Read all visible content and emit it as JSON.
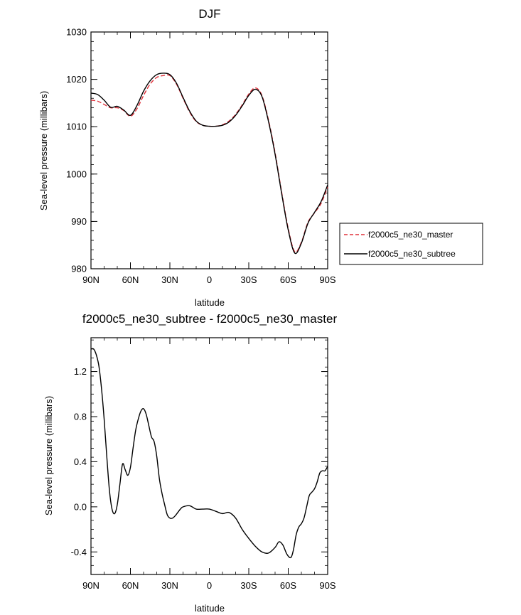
{
  "chart_data": [
    {
      "type": "line",
      "title": "DJF",
      "xlabel": "latitude",
      "ylabel": "Sea-level pressure (millibars)",
      "x_ticks": [
        {
          "lat": 90,
          "label": "90N"
        },
        {
          "lat": 60,
          "label": "60N"
        },
        {
          "lat": 30,
          "label": "30N"
        },
        {
          "lat": 0,
          "label": "0"
        },
        {
          "lat": -30,
          "label": "30S"
        },
        {
          "lat": -60,
          "label": "60S"
        },
        {
          "lat": -90,
          "label": "90S"
        }
      ],
      "y_ticks": [
        {
          "value": 980,
          "label": "980"
        },
        {
          "value": 990,
          "label": "990"
        },
        {
          "value": 1000,
          "label": "1000"
        },
        {
          "value": 1010,
          "label": "1010"
        },
        {
          "value": 1020,
          "label": "1020"
        },
        {
          "value": 1030,
          "label": "1030"
        }
      ],
      "xlim": [
        90,
        -90
      ],
      "ylim": [
        980,
        1030
      ],
      "legend": {
        "position": "right"
      },
      "series": [
        {
          "name": "f2000c5_ne30_master",
          "color": "#e0303a",
          "dash": true,
          "x": [
            90,
            85,
            80,
            75,
            70,
            65,
            60,
            55,
            50,
            45,
            40,
            35,
            30,
            25,
            20,
            15,
            10,
            5,
            0,
            -5,
            -10,
            -15,
            -20,
            -25,
            -30,
            -35,
            -40,
            -45,
            -50,
            -55,
            -60,
            -65,
            -70,
            -75,
            -80,
            -85,
            -90
          ],
          "y": [
            1015.6,
            1015.4,
            1014.7,
            1014.0,
            1014.0,
            1013.4,
            1012.2,
            1013.8,
            1016.6,
            1019.0,
            1020.4,
            1020.8,
            1020.8,
            1019.0,
            1016.0,
            1013.1,
            1011.1,
            1010.3,
            1010.1,
            1010.1,
            1010.4,
            1011.2,
            1012.6,
            1014.6,
            1016.9,
            1018.2,
            1016.6,
            1011.4,
            1004.5,
            996.2,
            988.5,
            983.6,
            985.6,
            989.8,
            991.8,
            993.8,
            997.3
          ]
        },
        {
          "name": "f2000c5_ne30_subtree",
          "color": "#000000",
          "dash": false,
          "x": [
            90,
            85,
            80,
            75,
            70,
            65,
            60,
            55,
            50,
            45,
            40,
            35,
            30,
            25,
            20,
            15,
            10,
            5,
            0,
            -5,
            -10,
            -15,
            -20,
            -25,
            -30,
            -35,
            -40,
            -45,
            -50,
            -55,
            -60,
            -65,
            -70,
            -75,
            -80,
            -85,
            -90
          ],
          "y": [
            1017.1,
            1016.8,
            1015.6,
            1014.1,
            1014.3,
            1013.5,
            1012.4,
            1014.5,
            1017.5,
            1019.7,
            1021.0,
            1021.3,
            1021.0,
            1019.2,
            1016.2,
            1013.3,
            1011.2,
            1010.3,
            1010.1,
            1010.1,
            1010.3,
            1011.0,
            1012.4,
            1014.4,
            1016.6,
            1017.9,
            1016.4,
            1011.1,
            1004.2,
            995.9,
            988.2,
            983.3,
            985.4,
            989.6,
            991.9,
            994.2,
            997.7
          ]
        }
      ]
    },
    {
      "type": "line",
      "title": "f2000c5_ne30_subtree - f2000c5_ne30_master",
      "xlabel": "latitude",
      "ylabel": "Sea-level pressure (millibars)",
      "x_ticks": [
        {
          "lat": 90,
          "label": "90N"
        },
        {
          "lat": 60,
          "label": "60N"
        },
        {
          "lat": 30,
          "label": "30N"
        },
        {
          "lat": 0,
          "label": "0"
        },
        {
          "lat": -30,
          "label": "30S"
        },
        {
          "lat": -60,
          "label": "60S"
        },
        {
          "lat": -90,
          "label": "90S"
        }
      ],
      "y_ticks": [
        {
          "value": -0.4,
          "label": "-0.4"
        },
        {
          "value": 0.0,
          "label": "0.0"
        },
        {
          "value": 0.4,
          "label": "0.4"
        },
        {
          "value": 0.8,
          "label": "0.8"
        },
        {
          "value": 1.2,
          "label": "1.2"
        }
      ],
      "xlim": [
        90,
        -90
      ],
      "ylim": [
        -0.6,
        1.5
      ],
      "series": [
        {
          "color": "#000000",
          "dash": false,
          "x": [
            90,
            88,
            86,
            84,
            82,
            80,
            78,
            76,
            74,
            72,
            70,
            68,
            66,
            64,
            62,
            60,
            58,
            56,
            54,
            52,
            50,
            48,
            46,
            44,
            42,
            40,
            38,
            36,
            34,
            32,
            30,
            28,
            26,
            24,
            22,
            20,
            15,
            10,
            5,
            0,
            -5,
            -10,
            -15,
            -20,
            -25,
            -30,
            -35,
            -40,
            -45,
            -50,
            -53,
            -56,
            -59,
            -62,
            -64,
            -66,
            -68,
            -70,
            -72,
            -74,
            -76,
            -78,
            -80,
            -82,
            -84,
            -86,
            -88,
            -90
          ],
          "y": [
            1.4,
            1.4,
            1.35,
            1.25,
            1.05,
            0.78,
            0.45,
            0.15,
            -0.02,
            -0.06,
            0.02,
            0.2,
            0.38,
            0.33,
            0.28,
            0.35,
            0.52,
            0.68,
            0.78,
            0.85,
            0.87,
            0.82,
            0.72,
            0.62,
            0.58,
            0.45,
            0.25,
            0.12,
            0.02,
            -0.07,
            -0.1,
            -0.1,
            -0.08,
            -0.05,
            -0.02,
            0.0,
            0.01,
            -0.02,
            -0.02,
            -0.02,
            -0.04,
            -0.06,
            -0.05,
            -0.1,
            -0.2,
            -0.28,
            -0.35,
            -0.4,
            -0.41,
            -0.36,
            -0.31,
            -0.34,
            -0.42,
            -0.45,
            -0.38,
            -0.25,
            -0.18,
            -0.15,
            -0.1,
            0.0,
            0.1,
            0.13,
            0.16,
            0.22,
            0.3,
            0.32,
            0.32,
            0.36
          ]
        }
      ]
    }
  ]
}
